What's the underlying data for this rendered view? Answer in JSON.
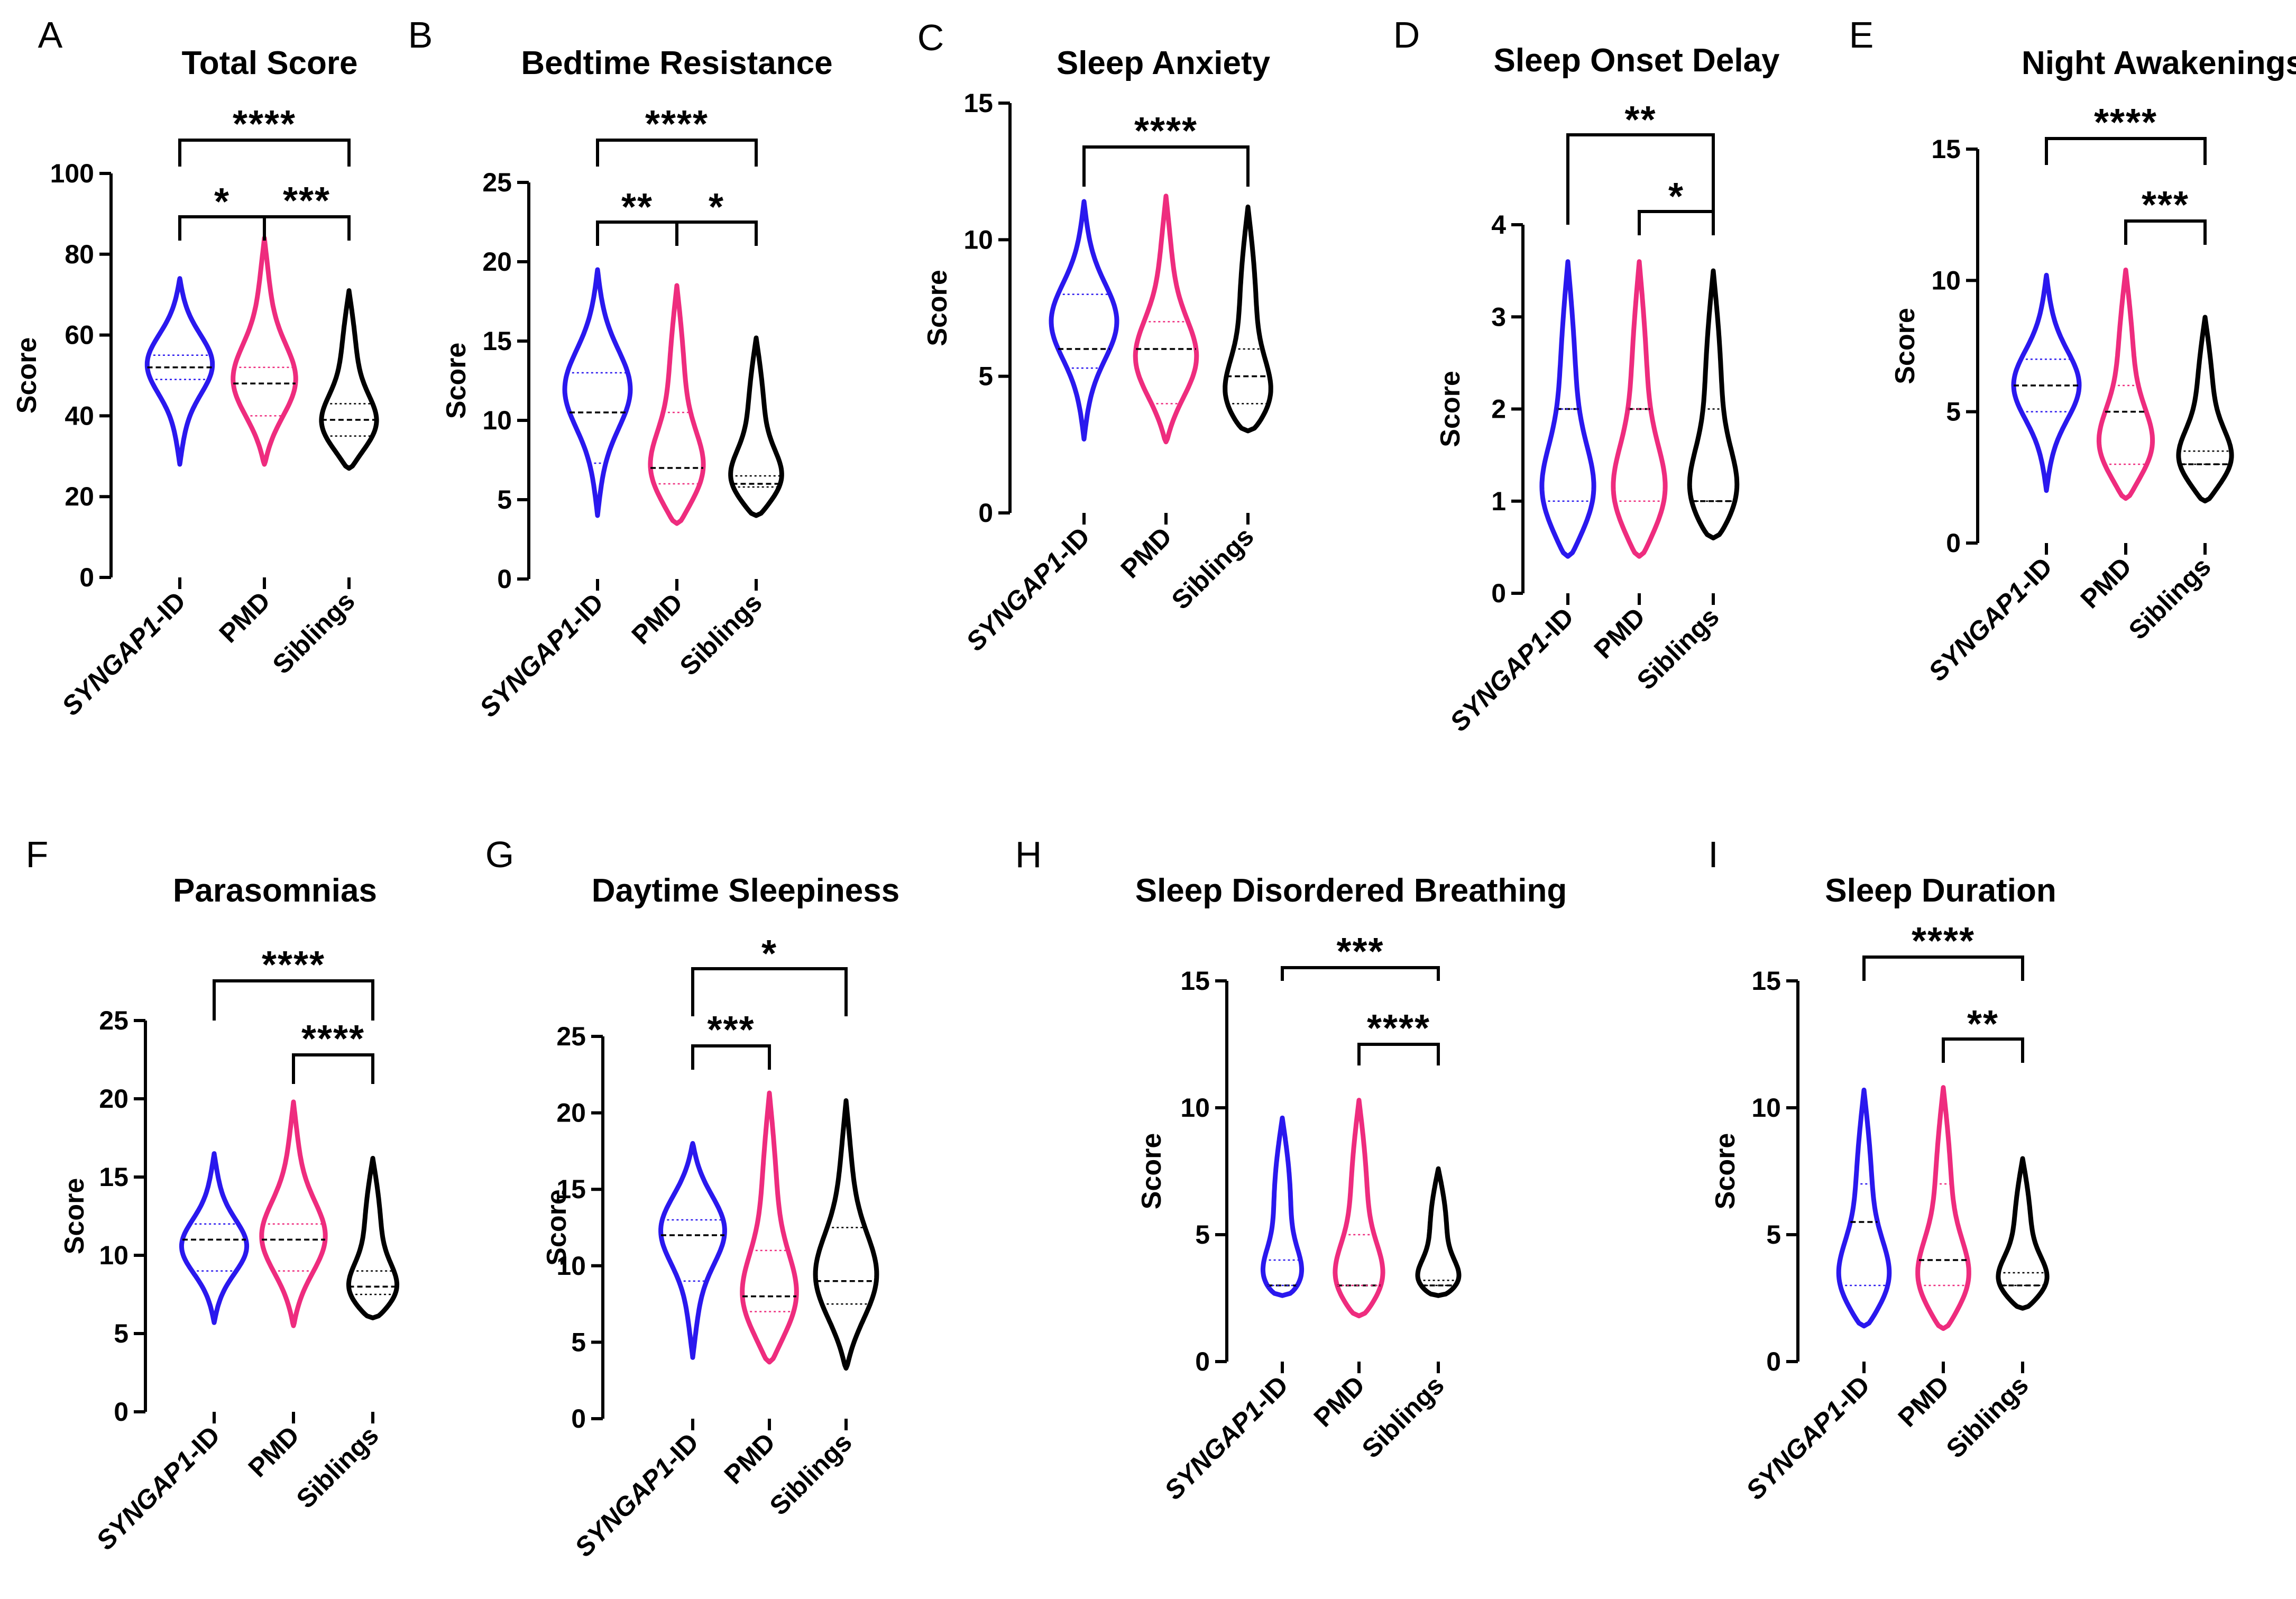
{
  "colors": {
    "SYNGAP1-ID": "#2a18ee",
    "PMD": "#ee2c7e",
    "Siblings": "#000000"
  },
  "chart_data": [
    {
      "letter": "A",
      "title": "Total Score",
      "type": "violin",
      "ylabel": "Score",
      "ylim": [
        0,
        100
      ],
      "yticks": [
        0,
        20,
        40,
        60,
        80,
        100
      ],
      "categories": [
        "SYNGAP1-ID",
        "PMD",
        "Siblings"
      ],
      "series": [
        {
          "name": "SYNGAP1-ID",
          "min": 28,
          "max": 74,
          "median": 52,
          "q1": 49,
          "q3": 55,
          "peak": 53
        },
        {
          "name": "PMD",
          "min": 28,
          "max": 84,
          "median": 48,
          "q1": 40,
          "q3": 52,
          "peak": 48
        },
        {
          "name": "Siblings",
          "min": 27,
          "max": 71,
          "median": 39,
          "q1": 35,
          "q3": 43,
          "peak": 37
        }
      ],
      "significance": [
        {
          "label": "****",
          "from": 0,
          "to": 2
        },
        {
          "label": "*",
          "from": 0,
          "to": 1
        },
        {
          "label": "***",
          "from": 1,
          "to": 2
        }
      ]
    },
    {
      "letter": "B",
      "title": "Bedtime Resistance",
      "type": "violin",
      "ylabel": "Score",
      "ylim": [
        0,
        25
      ],
      "yticks": [
        0,
        5,
        10,
        15,
        20,
        25
      ],
      "categories": [
        "SYNGAP1-ID",
        "PMD",
        "Siblings"
      ],
      "series": [
        {
          "name": "SYNGAP1-ID",
          "min": 4,
          "max": 19.5,
          "median": 10.5,
          "q1": 7.3,
          "q3": 13,
          "peak": 12
        },
        {
          "name": "PMD",
          "min": 3.5,
          "max": 18.5,
          "median": 7,
          "q1": 6,
          "q3": 10.5,
          "peak": 6.5
        },
        {
          "name": "Siblings",
          "min": 4,
          "max": 15.2,
          "median": 6,
          "q1": 5.8,
          "q3": 6.5,
          "peak": 6
        }
      ],
      "significance": [
        {
          "label": "****",
          "from": 0,
          "to": 2
        },
        {
          "label": "**",
          "from": 0,
          "to": 1
        },
        {
          "label": "*",
          "from": 1,
          "to": 2
        }
      ]
    },
    {
      "letter": "C",
      "title": "Sleep Anxiety",
      "type": "violin",
      "ylabel": "Score",
      "ylim": [
        0,
        15
      ],
      "yticks": [
        0,
        5,
        10,
        15
      ],
      "categories": [
        "SYNGAP1-ID",
        "PMD",
        "Siblings"
      ],
      "series": [
        {
          "name": "SYNGAP1-ID",
          "min": 2.7,
          "max": 11.4,
          "median": 6,
          "q1": 5.3,
          "q3": 8,
          "peak": 7
        },
        {
          "name": "PMD",
          "min": 2.6,
          "max": 11.6,
          "median": 6,
          "q1": 4,
          "q3": 7,
          "peak": 5.5
        },
        {
          "name": "Siblings",
          "min": 3,
          "max": 11.2,
          "median": 5,
          "q1": 4,
          "q3": 6,
          "peak": 4
        }
      ],
      "significance": [
        {
          "label": "****",
          "from": 0,
          "to": 2
        }
      ]
    },
    {
      "letter": "D",
      "title": "Sleep Onset Delay",
      "type": "violin",
      "ylabel": "Score",
      "ylim": [
        0,
        4
      ],
      "yticks": [
        0,
        1,
        2,
        3,
        4
      ],
      "categories": [
        "SYNGAP1-ID",
        "PMD",
        "Siblings"
      ],
      "series": [
        {
          "name": "SYNGAP1-ID",
          "min": 0.4,
          "max": 3.6,
          "median": 2,
          "q1": 1,
          "q3": 2,
          "peak": 1
        },
        {
          "name": "PMD",
          "min": 0.4,
          "max": 3.6,
          "median": 2,
          "q1": 1,
          "q3": 2,
          "peak": 1
        },
        {
          "name": "Siblings",
          "min": 0.6,
          "max": 3.5,
          "median": 1,
          "q1": 1,
          "q3": 2,
          "peak": 1
        }
      ],
      "significance": [
        {
          "label": "**",
          "from": 0,
          "to": 2
        },
        {
          "label": "*",
          "from": 1,
          "to": 2
        }
      ]
    },
    {
      "letter": "E",
      "title": "Night Awakenings",
      "type": "violin",
      "ylabel": "Score",
      "ylim": [
        0,
        15
      ],
      "yticks": [
        0,
        5,
        10,
        15
      ],
      "categories": [
        "SYNGAP1-ID",
        "PMD",
        "Siblings"
      ],
      "series": [
        {
          "name": "SYNGAP1-ID",
          "min": 2,
          "max": 10.2,
          "median": 6,
          "q1": 5,
          "q3": 7,
          "peak": 6
        },
        {
          "name": "PMD",
          "min": 1.7,
          "max": 10.4,
          "median": 5,
          "q1": 3,
          "q3": 6,
          "peak": 3.5
        },
        {
          "name": "Siblings",
          "min": 1.6,
          "max": 8.6,
          "median": 3,
          "q1": 3,
          "q3": 3.5,
          "peak": 3
        }
      ],
      "significance": [
        {
          "label": "****",
          "from": 0,
          "to": 2
        },
        {
          "label": "***",
          "from": 1,
          "to": 2
        }
      ]
    },
    {
      "letter": "F",
      "title": "Parasomnias",
      "type": "violin",
      "ylabel": "Score",
      "ylim": [
        0,
        25
      ],
      "yticks": [
        0,
        5,
        10,
        15,
        20,
        25
      ],
      "categories": [
        "SYNGAP1-ID",
        "PMD",
        "Siblings"
      ],
      "series": [
        {
          "name": "SYNGAP1-ID",
          "min": 5.7,
          "max": 16.5,
          "median": 11,
          "q1": 9,
          "q3": 12,
          "peak": 10.5
        },
        {
          "name": "PMD",
          "min": 5.5,
          "max": 19.8,
          "median": 11,
          "q1": 9,
          "q3": 12,
          "peak": 11
        },
        {
          "name": "Siblings",
          "min": 6,
          "max": 16.2,
          "median": 8,
          "q1": 7.5,
          "q3": 9,
          "peak": 7.5
        }
      ],
      "significance": [
        {
          "label": "****",
          "from": 0,
          "to": 2
        },
        {
          "label": "****",
          "from": 1,
          "to": 2
        }
      ]
    },
    {
      "letter": "G",
      "title": "Daytime Sleepiness",
      "type": "violin",
      "ylabel": "Score",
      "ylim": [
        0,
        25
      ],
      "yticks": [
        0,
        5,
        10,
        15,
        20,
        25
      ],
      "categories": [
        "SYNGAP1-ID",
        "PMD",
        "Siblings"
      ],
      "series": [
        {
          "name": "SYNGAP1-ID",
          "min": 4,
          "max": 18,
          "median": 12,
          "q1": 9,
          "q3": 13,
          "peak": 12.5
        },
        {
          "name": "PMD",
          "min": 3.7,
          "max": 21.3,
          "median": 8,
          "q1": 7,
          "q3": 11,
          "peak": 7.5
        },
        {
          "name": "Siblings",
          "min": 3.3,
          "max": 20.8,
          "median": 9,
          "q1": 7.5,
          "q3": 12.5,
          "peak": 9
        }
      ],
      "significance": [
        {
          "label": "*",
          "from": 0,
          "to": 2
        },
        {
          "label": "***",
          "from": 0,
          "to": 1
        }
      ]
    },
    {
      "letter": "H",
      "title": "Sleep Disordered Breathing",
      "type": "violin",
      "ylabel": "Score",
      "ylim": [
        0,
        15
      ],
      "yticks": [
        0,
        5,
        10,
        15
      ],
      "categories": [
        "SYNGAP1-ID",
        "PMD",
        "Siblings"
      ],
      "series": [
        {
          "name": "SYNGAP1-ID",
          "min": 2.6,
          "max": 9.6,
          "median": 3,
          "q1": 3,
          "q3": 4,
          "peak": 3
        },
        {
          "name": "PMD",
          "min": 1.8,
          "max": 10.3,
          "median": 3,
          "q1": 3,
          "q3": 5,
          "peak": 3
        },
        {
          "name": "Siblings",
          "min": 2.6,
          "max": 7.6,
          "median": 3,
          "q1": 3,
          "q3": 3.2,
          "peak": 3
        }
      ],
      "significance": [
        {
          "label": "***",
          "from": 0,
          "to": 2
        },
        {
          "label": "****",
          "from": 1,
          "to": 2
        }
      ]
    },
    {
      "letter": "I",
      "title": "Sleep Duration",
      "type": "violin",
      "ylabel": "Score",
      "ylim": [
        0,
        15
      ],
      "yticks": [
        0,
        5,
        10,
        15
      ],
      "categories": [
        "SYNGAP1-ID",
        "PMD",
        "Siblings"
      ],
      "series": [
        {
          "name": "SYNGAP1-ID",
          "min": 1.4,
          "max": 10.7,
          "median": 5.5,
          "q1": 3,
          "q3": 7,
          "peak": 3
        },
        {
          "name": "PMD",
          "min": 1.3,
          "max": 10.8,
          "median": 4,
          "q1": 3,
          "q3": 7,
          "peak": 3
        },
        {
          "name": "Siblings",
          "min": 2.1,
          "max": 8,
          "median": 3,
          "q1": 3,
          "q3": 3.5,
          "peak": 3
        }
      ],
      "significance": [
        {
          "label": "****",
          "from": 0,
          "to": 2
        },
        {
          "label": "**",
          "from": 1,
          "to": 2
        }
      ]
    }
  ]
}
